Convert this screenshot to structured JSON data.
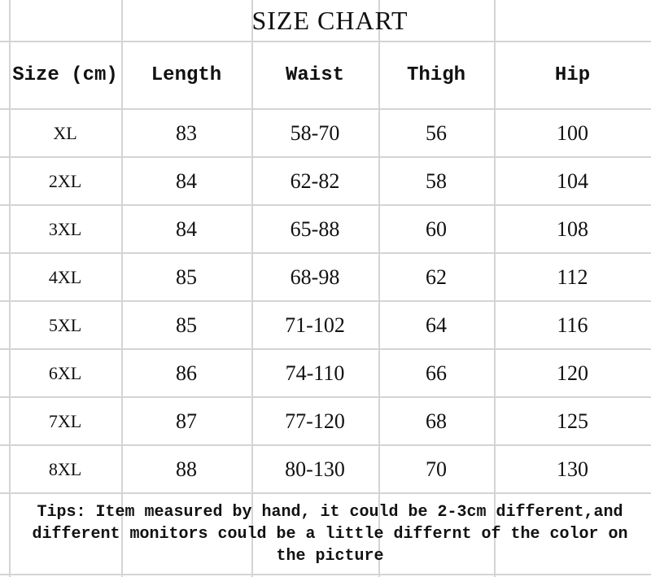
{
  "title": "SIZE CHART",
  "columns": [
    "Size (cm)",
    "Length",
    "Waist",
    "Thigh",
    "Hip"
  ],
  "rows": [
    [
      "XL",
      "83",
      "58-70",
      "56",
      "100"
    ],
    [
      "2XL",
      "84",
      "62-82",
      "58",
      "104"
    ],
    [
      "3XL",
      "84",
      "65-88",
      "60",
      "108"
    ],
    [
      "4XL",
      "85",
      "68-98",
      "62",
      "112"
    ],
    [
      "5XL",
      "85",
      "71-102",
      "64",
      "116"
    ],
    [
      "6XL",
      "86",
      "74-110",
      "66",
      "120"
    ],
    [
      "7XL",
      "87",
      "77-120",
      "68",
      "125"
    ],
    [
      "8XL",
      "88",
      "80-130",
      "70",
      "130"
    ]
  ],
  "tips": "Tips: Item measured by hand, it could be 2-3cm different,and different monitors could be a little differnt of the color on the picture"
}
